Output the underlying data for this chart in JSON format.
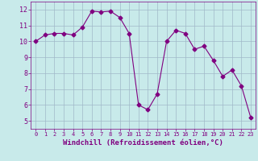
{
  "x": [
    0,
    1,
    2,
    3,
    4,
    5,
    6,
    7,
    8,
    9,
    10,
    11,
    12,
    13,
    14,
    15,
    16,
    17,
    18,
    19,
    20,
    21,
    22,
    23
  ],
  "y": [
    10.0,
    10.4,
    10.5,
    10.5,
    10.4,
    10.9,
    11.9,
    11.85,
    11.9,
    11.5,
    10.5,
    6.0,
    5.7,
    6.7,
    10.0,
    10.7,
    10.5,
    9.5,
    9.7,
    8.8,
    7.8,
    8.2,
    7.2,
    5.2
  ],
  "line_color": "#800080",
  "marker": "D",
  "marker_size": 2.5,
  "bg_color": "#c8eaea",
  "grid_color": "#a0b8c8",
  "xlabel": "Windchill (Refroidissement éolien,°C)",
  "xlabel_color": "#800080",
  "xlabel_bg": "#c8eaea",
  "tick_color": "#800080",
  "ylim": [
    4.5,
    12.5
  ],
  "xlim": [
    -0.5,
    23.5
  ],
  "yticks": [
    5,
    6,
    7,
    8,
    9,
    10,
    11,
    12
  ],
  "xticks": [
    0,
    1,
    2,
    3,
    4,
    5,
    6,
    7,
    8,
    9,
    10,
    11,
    12,
    13,
    14,
    15,
    16,
    17,
    18,
    19,
    20,
    21,
    22,
    23
  ]
}
